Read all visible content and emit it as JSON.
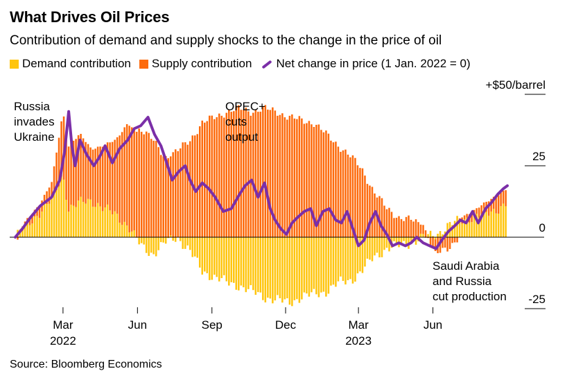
{
  "title": "What Drives Oil Prices",
  "subtitle": "Contribution of demand and supply shocks to the change in the price of oil",
  "source": "Source: Bloomberg Economics",
  "colors": {
    "demand": "#ffc50d",
    "supply": "#fd6a0c",
    "net": "#7b2fa8"
  },
  "chart_data": {
    "type": "area",
    "x_unit": "date",
    "y_unit": "$/barrel",
    "ylim": [
      -30,
      50
    ],
    "y_ticks": [
      {
        "value": 50,
        "label": "+$50/barrel"
      },
      {
        "value": 25,
        "label": "25"
      },
      {
        "value": 0,
        "label": "0"
      },
      {
        "value": -25,
        "label": "-25"
      }
    ],
    "x_ticks": [
      {
        "date": "2022-03-01",
        "label": "Mar",
        "year": "2022"
      },
      {
        "date": "2022-06-01",
        "label": "Jun",
        "year": ""
      },
      {
        "date": "2022-09-01",
        "label": "Sep",
        "year": ""
      },
      {
        "date": "2022-12-01",
        "label": "Dec",
        "year": ""
      },
      {
        "date": "2023-03-01",
        "label": "Mar",
        "year": "2023"
      },
      {
        "date": "2023-06-01",
        "label": "Jun",
        "year": ""
      }
    ],
    "legend": [
      {
        "key": "demand",
        "label": "Demand contribution",
        "kind": "bar"
      },
      {
        "key": "supply",
        "label": "Supply contribution",
        "kind": "bar"
      },
      {
        "key": "net",
        "label": "Net change in price (1 Jan. 2022 = 0)",
        "kind": "line"
      }
    ],
    "annotations": [
      {
        "lines": [
          "Russia",
          "invades",
          "Ukraine"
        ],
        "date": "2022-02-24"
      },
      {
        "lines": [
          "OPEC+",
          "cuts",
          "output"
        ],
        "date": "2022-10-05"
      },
      {
        "lines": [
          "Saudi Arabia",
          "and Russia",
          "cut production"
        ],
        "date": "2023-06-05"
      }
    ],
    "series": [
      {
        "key": "demand",
        "points": [
          [
            "2022-01-01",
            0
          ],
          [
            "2022-01-15",
            4
          ],
          [
            "2022-02-01",
            9
          ],
          [
            "2022-02-15",
            13
          ],
          [
            "2022-03-01",
            22
          ],
          [
            "2022-03-08",
            10
          ],
          [
            "2022-03-22",
            12
          ],
          [
            "2022-04-05",
            13
          ],
          [
            "2022-04-20",
            10
          ],
          [
            "2022-05-05",
            8
          ],
          [
            "2022-05-20",
            4
          ],
          [
            "2022-06-05",
            -3
          ],
          [
            "2022-06-20",
            -6
          ],
          [
            "2022-07-05",
            -2
          ],
          [
            "2022-07-20",
            0
          ],
          [
            "2022-08-05",
            -5
          ],
          [
            "2022-08-20",
            -12
          ],
          [
            "2022-09-05",
            -14
          ],
          [
            "2022-09-20",
            -16
          ],
          [
            "2022-10-05",
            -17
          ],
          [
            "2022-10-20",
            -19
          ],
          [
            "2022-11-05",
            -21
          ],
          [
            "2022-11-20",
            -22
          ],
          [
            "2022-12-05",
            -23
          ],
          [
            "2022-12-20",
            -21
          ],
          [
            "2023-01-05",
            -20
          ],
          [
            "2023-01-20",
            -19
          ],
          [
            "2023-02-05",
            -16
          ],
          [
            "2023-02-20",
            -15
          ],
          [
            "2023-03-05",
            -12
          ],
          [
            "2023-03-20",
            -7
          ],
          [
            "2023-04-05",
            -4
          ],
          [
            "2023-04-20",
            -3
          ],
          [
            "2023-05-05",
            -2
          ],
          [
            "2023-05-20",
            0
          ],
          [
            "2023-06-05",
            1
          ],
          [
            "2023-06-20",
            4
          ],
          [
            "2023-07-05",
            6
          ],
          [
            "2023-07-20",
            7
          ],
          [
            "2023-08-05",
            8
          ],
          [
            "2023-08-20",
            10
          ],
          [
            "2023-09-01",
            12
          ]
        ]
      },
      {
        "key": "supply",
        "points": [
          [
            "2022-01-01",
            0
          ],
          [
            "2022-01-15",
            2
          ],
          [
            "2022-02-01",
            3
          ],
          [
            "2022-02-15",
            6
          ],
          [
            "2022-03-01",
            22
          ],
          [
            "2022-03-08",
            22
          ],
          [
            "2022-03-22",
            24
          ],
          [
            "2022-04-05",
            18
          ],
          [
            "2022-04-20",
            22
          ],
          [
            "2022-05-05",
            26
          ],
          [
            "2022-05-20",
            36
          ],
          [
            "2022-06-05",
            38
          ],
          [
            "2022-06-20",
            34
          ],
          [
            "2022-07-05",
            28
          ],
          [
            "2022-07-20",
            30
          ],
          [
            "2022-08-05",
            34
          ],
          [
            "2022-08-20",
            40
          ],
          [
            "2022-09-05",
            42
          ],
          [
            "2022-09-20",
            44
          ],
          [
            "2022-10-05",
            45
          ],
          [
            "2022-10-20",
            44
          ],
          [
            "2022-11-05",
            45
          ],
          [
            "2022-11-20",
            44
          ],
          [
            "2022-12-05",
            42
          ],
          [
            "2022-12-20",
            41
          ],
          [
            "2023-01-05",
            40
          ],
          [
            "2023-01-20",
            36
          ],
          [
            "2023-02-05",
            32
          ],
          [
            "2023-02-20",
            28
          ],
          [
            "2023-03-05",
            24
          ],
          [
            "2023-03-20",
            16
          ],
          [
            "2023-04-05",
            10
          ],
          [
            "2023-04-20",
            7
          ],
          [
            "2023-05-05",
            6
          ],
          [
            "2023-05-20",
            4
          ],
          [
            "2023-06-05",
            -6
          ],
          [
            "2023-06-20",
            -4
          ],
          [
            "2023-07-05",
            1
          ],
          [
            "2023-07-20",
            2
          ],
          [
            "2023-08-05",
            4
          ],
          [
            "2023-08-20",
            5
          ],
          [
            "2023-09-01",
            5
          ]
        ]
      },
      {
        "key": "net",
        "points": [
          [
            "2022-01-01",
            0
          ],
          [
            "2022-01-10",
            3
          ],
          [
            "2022-01-20",
            7
          ],
          [
            "2022-02-01",
            11
          ],
          [
            "2022-02-15",
            14
          ],
          [
            "2022-02-25",
            20
          ],
          [
            "2022-03-03",
            30
          ],
          [
            "2022-03-08",
            44
          ],
          [
            "2022-03-12",
            32
          ],
          [
            "2022-03-16",
            25
          ],
          [
            "2022-03-22",
            34
          ],
          [
            "2022-03-30",
            29
          ],
          [
            "2022-04-08",
            25
          ],
          [
            "2022-04-15",
            28
          ],
          [
            "2022-04-22",
            32
          ],
          [
            "2022-05-01",
            26
          ],
          [
            "2022-05-10",
            31
          ],
          [
            "2022-05-20",
            34
          ],
          [
            "2022-05-28",
            38
          ],
          [
            "2022-06-05",
            39
          ],
          [
            "2022-06-14",
            42
          ],
          [
            "2022-06-22",
            36
          ],
          [
            "2022-06-30",
            32
          ],
          [
            "2022-07-06",
            27
          ],
          [
            "2022-07-14",
            20
          ],
          [
            "2022-07-22",
            23
          ],
          [
            "2022-07-30",
            25
          ],
          [
            "2022-08-05",
            20
          ],
          [
            "2022-08-12",
            16
          ],
          [
            "2022-08-20",
            19
          ],
          [
            "2022-08-28",
            17
          ],
          [
            "2022-09-05",
            14
          ],
          [
            "2022-09-15",
            9
          ],
          [
            "2022-09-25",
            10
          ],
          [
            "2022-10-05",
            15
          ],
          [
            "2022-10-12",
            18
          ],
          [
            "2022-10-20",
            20
          ],
          [
            "2022-10-28",
            14
          ],
          [
            "2022-11-05",
            19
          ],
          [
            "2022-11-12",
            10
          ],
          [
            "2022-11-18",
            6
          ],
          [
            "2022-11-25",
            3
          ],
          [
            "2022-12-02",
            1
          ],
          [
            "2022-12-09",
            5
          ],
          [
            "2022-12-16",
            7
          ],
          [
            "2022-12-24",
            9
          ],
          [
            "2023-01-01",
            10
          ],
          [
            "2023-01-08",
            4
          ],
          [
            "2023-01-16",
            9
          ],
          [
            "2023-01-24",
            10
          ],
          [
            "2023-02-01",
            6
          ],
          [
            "2023-02-08",
            5
          ],
          [
            "2023-02-15",
            9
          ],
          [
            "2023-02-22",
            3
          ],
          [
            "2023-03-01",
            -3
          ],
          [
            "2023-03-08",
            -1
          ],
          [
            "2023-03-15",
            5
          ],
          [
            "2023-03-22",
            9
          ],
          [
            "2023-03-29",
            4
          ],
          [
            "2023-04-05",
            1
          ],
          [
            "2023-04-12",
            -3
          ],
          [
            "2023-04-20",
            -2
          ],
          [
            "2023-04-28",
            -3
          ],
          [
            "2023-05-05",
            -2
          ],
          [
            "2023-05-12",
            0
          ],
          [
            "2023-05-20",
            -2
          ],
          [
            "2023-05-28",
            -3
          ],
          [
            "2023-06-05",
            -4
          ],
          [
            "2023-06-12",
            -1
          ],
          [
            "2023-06-20",
            2
          ],
          [
            "2023-06-28",
            4
          ],
          [
            "2023-07-05",
            6
          ],
          [
            "2023-07-12",
            5
          ],
          [
            "2023-07-20",
            9
          ],
          [
            "2023-07-27",
            5
          ],
          [
            "2023-08-05",
            10
          ],
          [
            "2023-08-12",
            12
          ],
          [
            "2023-08-20",
            15
          ],
          [
            "2023-08-27",
            17
          ],
          [
            "2023-09-01",
            18
          ]
        ]
      }
    ]
  }
}
